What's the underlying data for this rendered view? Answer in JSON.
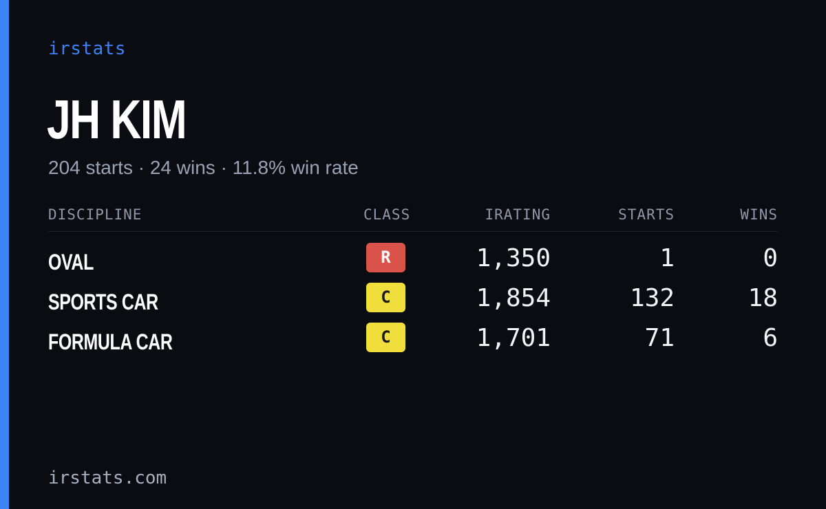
{
  "brand": "irstats",
  "driver": {
    "name": "JH KIM",
    "starts_text": "204 starts",
    "wins_text": "24 wins",
    "win_rate_text": "11.8% win rate",
    "separator": "·"
  },
  "table": {
    "headers": {
      "discipline": "DISCIPLINE",
      "class": "CLASS",
      "irating": "IRATING",
      "starts": "STARTS",
      "wins": "WINS"
    },
    "rows": [
      {
        "discipline": "OVAL",
        "class": "R",
        "class_color": "#d9534a",
        "class_text_color": "#ffffff",
        "irating": "1,350",
        "starts": "1",
        "wins": "0"
      },
      {
        "discipline": "SPORTS CAR",
        "class": "C",
        "class_color": "#f0de3c",
        "class_text_color": "#1a1a1a",
        "irating": "1,854",
        "starts": "132",
        "wins": "18"
      },
      {
        "discipline": "FORMULA CAR",
        "class": "C",
        "class_color": "#f0de3c",
        "class_text_color": "#1a1a1a",
        "irating": "1,701",
        "starts": "71",
        "wins": "6"
      }
    ]
  },
  "footer": "irstats.com",
  "colors": {
    "accent": "#3d82f6",
    "background": "#0a0c12"
  }
}
